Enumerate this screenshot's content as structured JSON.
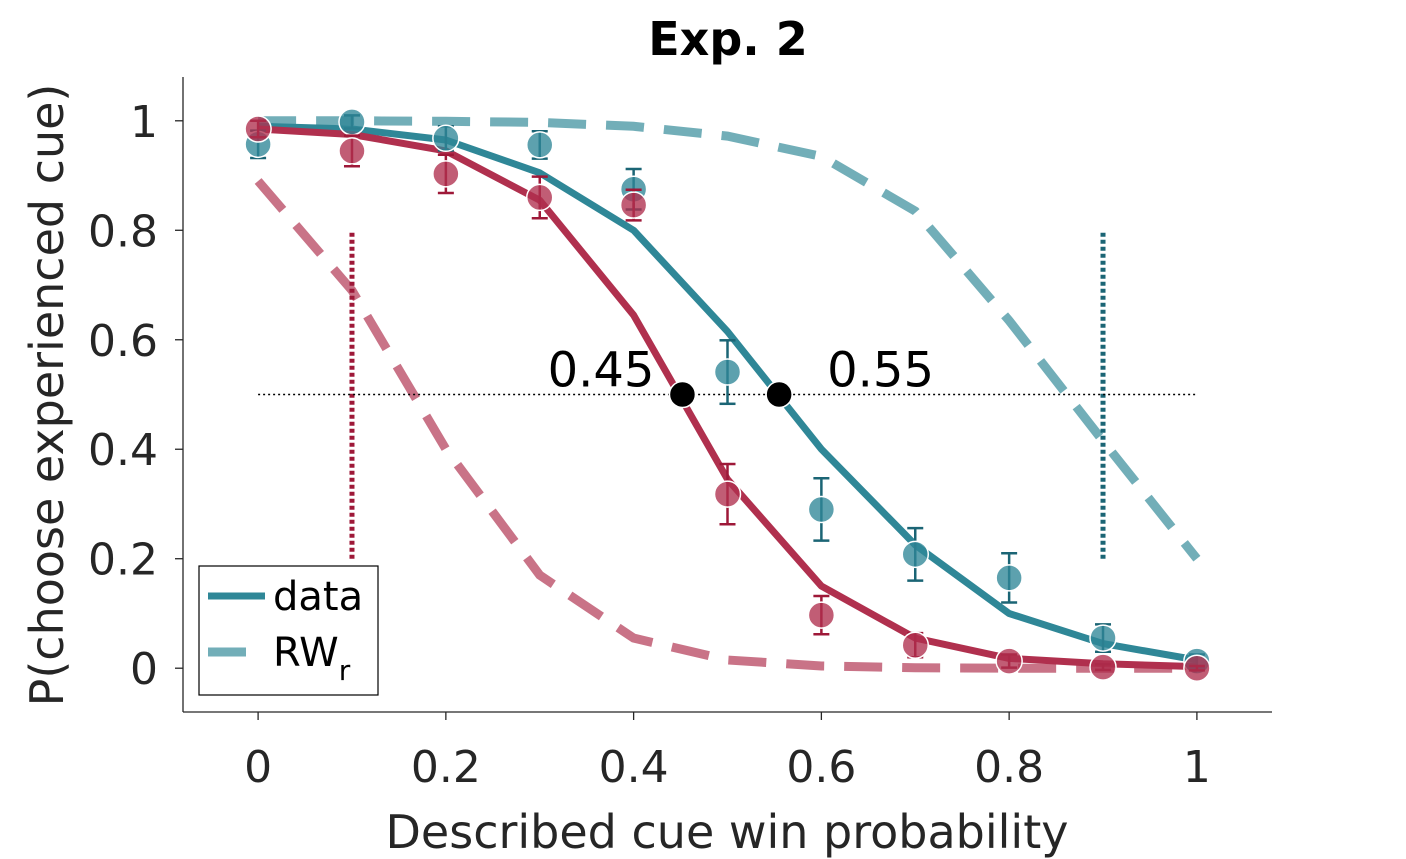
{
  "chart_data": {
    "type": "line",
    "title": "Exp. 2",
    "xlabel": "Described cue win probability",
    "ylabel": "P(choose experienced cue)",
    "xlim": [
      -0.08,
      1.08
    ],
    "ylim": [
      -0.08,
      1.08
    ],
    "xticks": [
      0,
      0.2,
      0.4,
      0.6,
      0.8,
      1
    ],
    "xtick_labels": [
      "0",
      "0.2",
      "0.4",
      "0.6",
      "0.8",
      "1"
    ],
    "yticks": [
      0,
      0.2,
      0.4,
      0.6,
      0.8,
      1
    ],
    "ytick_labels": [
      "0",
      "0.2",
      "0.4",
      "0.6",
      "0.8",
      "1"
    ],
    "grid": false,
    "legend": {
      "position": "bottom-left",
      "entries": [
        {
          "label": "data",
          "style": "solid"
        },
        {
          "label": "RW",
          "subscript": "r",
          "style": "dashed"
        }
      ]
    },
    "colors": {
      "teal": "#2f8797",
      "crimson": "#b0304e",
      "teal_dark": "#1b6575",
      "crimson_dark": "#9e1838"
    },
    "x": [
      0,
      0.1,
      0.2,
      0.3,
      0.4,
      0.5,
      0.6,
      0.7,
      0.8,
      0.9,
      1.0
    ],
    "series": [
      {
        "color": "teal",
        "data_line": [
          0.99,
          0.985,
          0.965,
          0.905,
          0.8,
          0.615,
          0.4,
          0.225,
          0.1,
          0.045,
          0.015
        ],
        "points": [
          0.957,
          0.998,
          0.968,
          0.956,
          0.875,
          0.541,
          0.29,
          0.208,
          0.165,
          0.055,
          0.013
        ],
        "errors": [
          0.025,
          0.012,
          0.022,
          0.025,
          0.037,
          0.058,
          0.057,
          0.048,
          0.045,
          0.025,
          0.012
        ],
        "model_rw": [
          1.0,
          1.0,
          0.999,
          0.997,
          0.99,
          0.972,
          0.935,
          0.835,
          0.635,
          0.415,
          0.2
        ]
      },
      {
        "color": "crimson",
        "data_line": [
          0.985,
          0.975,
          0.945,
          0.855,
          0.645,
          0.345,
          0.15,
          0.055,
          0.018,
          0.008,
          0.003
        ],
        "points": [
          0.985,
          0.945,
          0.903,
          0.86,
          0.846,
          0.318,
          0.097,
          0.042,
          0.013,
          0.002,
          0.0
        ],
        "errors": [
          0.015,
          0.028,
          0.035,
          0.038,
          0.028,
          0.055,
          0.035,
          0.022,
          0.012,
          0.005,
          0.004
        ],
        "model_rw": [
          0.89,
          0.69,
          0.4,
          0.17,
          0.055,
          0.015,
          0.004,
          0.001,
          0.0,
          0.0,
          0.0
        ]
      }
    ],
    "reference_line": {
      "y": 0.5,
      "x_from": 0,
      "x_to": 1
    },
    "crossover_points": [
      {
        "x": 0.452,
        "y": 0.5,
        "label": "0.45"
      },
      {
        "x": 0.555,
        "y": 0.5,
        "label": "0.55"
      }
    ],
    "vertical_markers": [
      {
        "x": 0.1,
        "y_from": 0.2,
        "y_to": 0.8,
        "color": "crimson_dark"
      },
      {
        "x": 0.9,
        "y_from": 0.2,
        "y_to": 0.8,
        "color": "teal_dark"
      }
    ]
  }
}
